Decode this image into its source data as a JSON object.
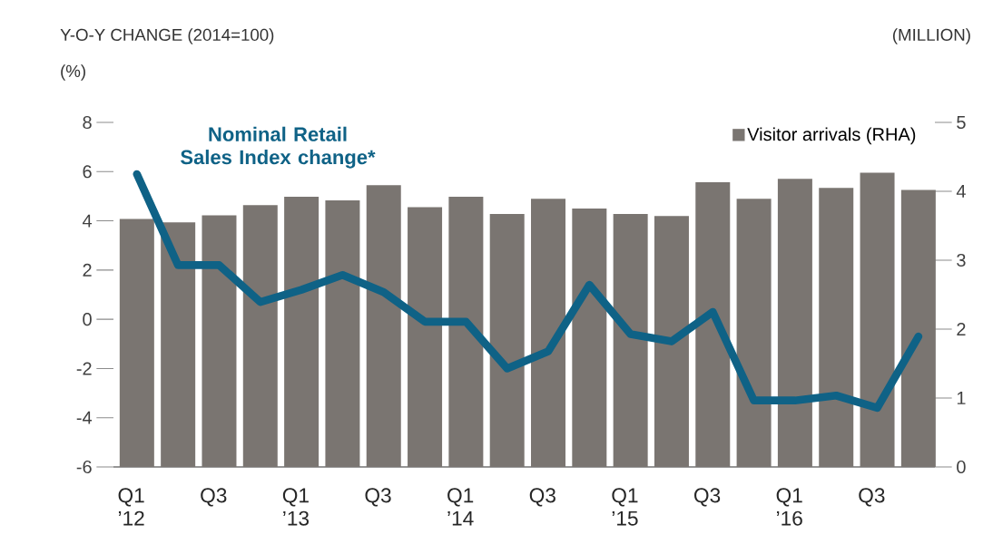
{
  "chart_data": {
    "type": "bar",
    "ylabel": "Y-O-Y CHANGE (2014=100)",
    "y2label": "(MILLION)",
    "annotations": [
      "(%)"
    ],
    "categories": [
      "Q1 ’12",
      null,
      "Q3",
      null,
      "Q1 ’13",
      null,
      "Q3",
      null,
      "Q1 ’14",
      null,
      "Q3",
      null,
      "Q1 ’15",
      null,
      "Q3",
      null,
      "Q1 ’16",
      null,
      "Q3",
      null
    ],
    "series": [
      {
        "name": "Visitor arrivals (RHA)",
        "axis": "y2",
        "color": "#7a7571",
        "values": [
          3.6,
          3.55,
          3.65,
          3.8,
          3.92,
          3.87,
          4.09,
          3.77,
          3.92,
          3.67,
          3.89,
          3.75,
          3.67,
          3.64,
          4.13,
          3.89,
          4.18,
          4.05,
          4.27,
          4.02
        ]
      },
      {
        "name": "Nominal Retail Sales Index change*",
        "type": "line",
        "color": "#0f6286",
        "values": [
          5.9,
          2.2,
          2.2,
          0.7,
          1.2,
          1.8,
          1.1,
          -0.1,
          -0.1,
          -2.0,
          -1.3,
          1.4,
          -0.6,
          -0.9,
          0.3,
          -3.3,
          -3.3,
          -3.1,
          -3.6,
          -0.7
        ]
      }
    ],
    "ylim": [
      -6,
      8
    ],
    "yticks": [
      -6,
      -4,
      -2,
      0,
      2,
      4,
      6,
      8
    ],
    "y2lim": [
      0,
      5
    ],
    "y2ticks": [
      0,
      1,
      2,
      3,
      4,
      5
    ],
    "legend": "top right",
    "marker": "none",
    "line_style": "solid"
  }
}
